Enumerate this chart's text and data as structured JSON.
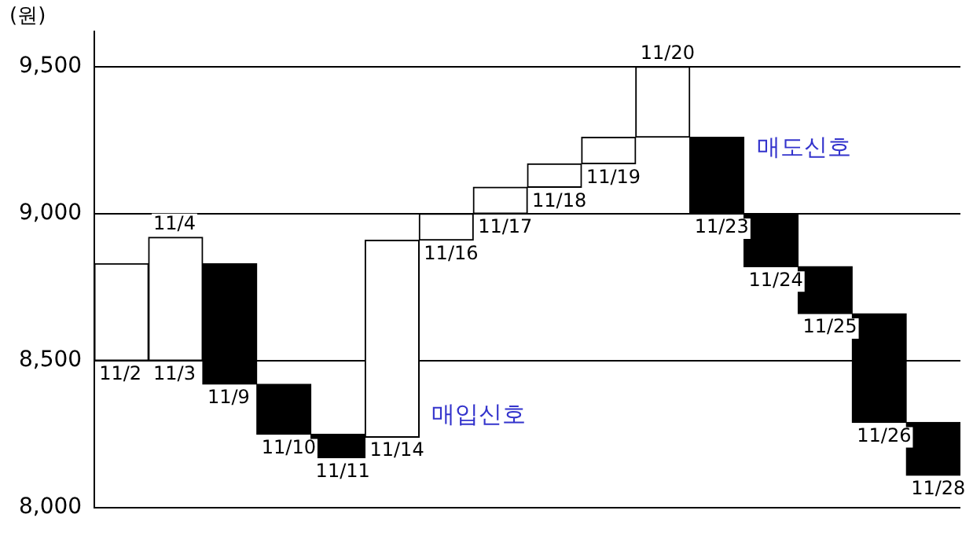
{
  "chart_data": {
    "type": "bar",
    "ylabel": "(원)",
    "categories": [
      "11/2",
      "11/4",
      "11/9",
      "11/10",
      "11/11",
      "11/14",
      "11/16",
      "11/17",
      "11/18",
      "11/19",
      "11/20",
      "11/23",
      "11/24",
      "11/25",
      "11/26",
      "11/28"
    ],
    "base": [
      8500,
      8500,
      8830,
      8420,
      8250,
      8240,
      8910,
      9000,
      9090,
      9170,
      9260,
      9260,
      9000,
      8820,
      8660,
      8290
    ],
    "values": [
      330,
      420,
      -410,
      -170,
      -80,
      670,
      90,
      90,
      80,
      90,
      240,
      -260,
      -180,
      -160,
      -370,
      -180
    ],
    "colors": [
      "#ffffff",
      "#ffffff",
      "#000000",
      "#000000",
      "#000000",
      "#ffffff",
      "#ffffff",
      "#ffffff",
      "#ffffff",
      "#ffffff",
      "#ffffff",
      "#000000",
      "#000000",
      "#000000",
      "#000000",
      "#000000"
    ],
    "ylim": [
      8000,
      9620
    ],
    "yticks": [
      {
        "value": 8000,
        "label": "8,000"
      },
      {
        "value": 8500,
        "label": "8,500"
      },
      {
        "value": 9000,
        "label": "9,000"
      },
      {
        "value": 9500,
        "label": "9,500"
      }
    ],
    "grid": "y",
    "legend": false,
    "annotations": [
      {
        "text": "11/3",
        "x": "11/2",
        "y": 8500
      },
      {
        "text": "매도신호",
        "x": "11/23",
        "y": 9260
      },
      {
        "text": "매입신호",
        "x": "11/14",
        "y": 8240
      }
    ]
  }
}
